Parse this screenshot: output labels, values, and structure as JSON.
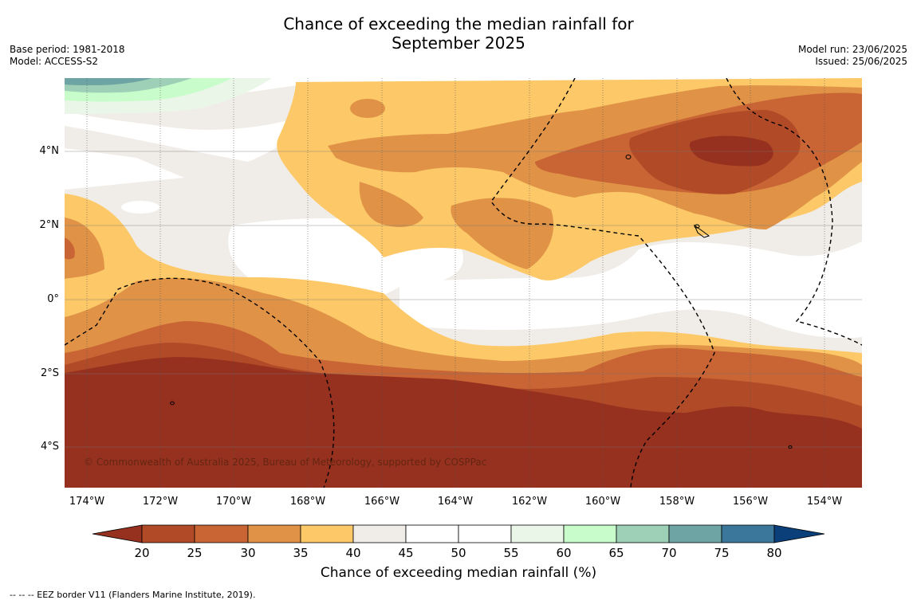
{
  "header": {
    "title_line1": "Chance of exceeding the median rainfall for",
    "title_line2": "September 2025",
    "base_period": "Base period: 1981-2018",
    "model": "Model: ACCESS-S2",
    "model_run": "Model run: 23/06/2025",
    "issued": "Issued: 25/06/2025"
  },
  "map": {
    "y_ticks": [
      "4°N",
      "2°N",
      "0°",
      "2°S",
      "4°S"
    ],
    "x_ticks": [
      "174°W",
      "172°W",
      "170°W",
      "168°W",
      "166°W",
      "164°W",
      "162°W",
      "160°W",
      "158°W",
      "156°W",
      "154°W"
    ],
    "credit": "© Commonwealth of Australia 2025, Bureau of Meteorology, supported by COSPPac",
    "colors": {
      "c20": "#97311f",
      "c25": "#b04a27",
      "c30": "#c96434",
      "c35": "#e09347",
      "c40": "#fdc968",
      "c45": "#f0ede8",
      "c50": "#ffffff",
      "c60": "#eaf6e8",
      "c65": "#c8fdcb",
      "c70": "#9dd0b6",
      "c75": "#6fa4a5",
      "c80": "#3b779b",
      "over": "#0b3f7a"
    }
  },
  "colorbar": {
    "labels": [
      "20",
      "25",
      "30",
      "35",
      "40",
      "45",
      "50",
      "55",
      "60",
      "65",
      "70",
      "75",
      "80"
    ],
    "title": "Chance of exceeding median rainfall (%)"
  },
  "footnote": "--  --  -- EEZ border V11 (Flanders Marine Institute, 2019)."
}
